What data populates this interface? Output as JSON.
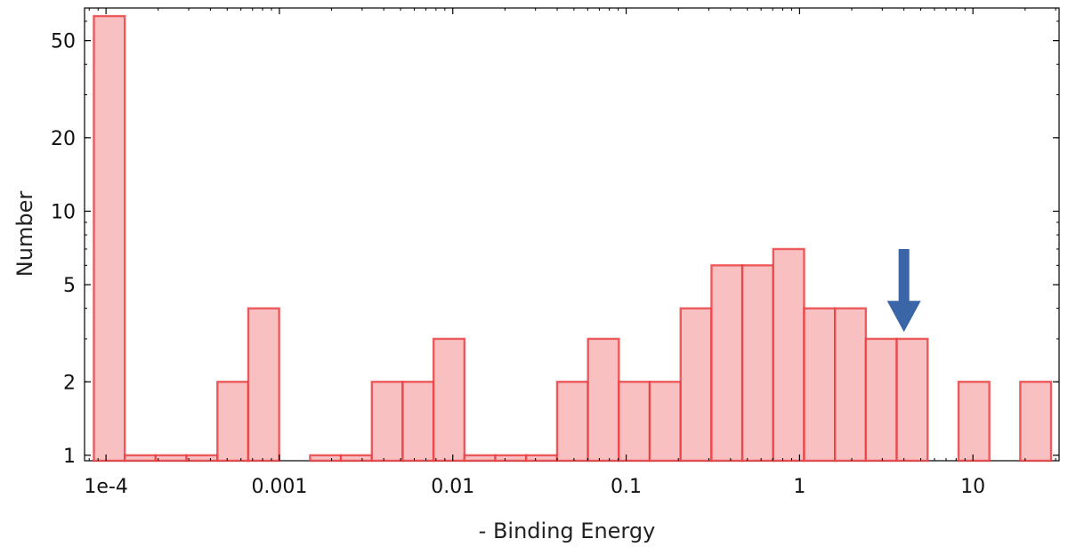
{
  "chart_data": {
    "type": "bar",
    "title": "",
    "xlabel": "- Binding Energy",
    "ylabel": "Number",
    "x_scale": "log",
    "y_scale": "log",
    "xlim": [
      7.52e-05,
      31.4
    ],
    "ylim": [
      0.95,
      68
    ],
    "x_ticks": [
      {
        "value": 0.0001,
        "label": "1e-4"
      },
      {
        "value": 0.001,
        "label": "0.001"
      },
      {
        "value": 0.01,
        "label": "0.01"
      },
      {
        "value": 0.1,
        "label": "0.1"
      },
      {
        "value": 1,
        "label": "1"
      },
      {
        "value": 10,
        "label": "10"
      }
    ],
    "y_ticks": [
      {
        "value": 1,
        "label": "1"
      },
      {
        "value": 2,
        "label": "2"
      },
      {
        "value": 5,
        "label": "5"
      },
      {
        "value": 10,
        "label": "10"
      },
      {
        "value": 20,
        "label": "20"
      },
      {
        "value": 50,
        "label": "50"
      }
    ],
    "bins": [
      {
        "x0": 8.51e-05,
        "x1": 0.0001283,
        "count": 63
      },
      {
        "x0": 0.0001283,
        "x1": 0.0001933,
        "count": 1
      },
      {
        "x0": 0.0001933,
        "x1": 0.0002914,
        "count": 1
      },
      {
        "x0": 0.0002914,
        "x1": 0.0004391,
        "count": 1
      },
      {
        "x0": 0.0004391,
        "x1": 0.0006617,
        "count": 2
      },
      {
        "x0": 0.0006617,
        "x1": 0.000997,
        "count": 4
      },
      {
        "x0": 0.001503,
        "x1": 0.002265,
        "count": 1
      },
      {
        "x0": 0.002265,
        "x1": 0.003413,
        "count": 1
      },
      {
        "x0": 0.003413,
        "x1": 0.005143,
        "count": 2
      },
      {
        "x0": 0.005143,
        "x1": 0.00775,
        "count": 2
      },
      {
        "x0": 0.00775,
        "x1": 0.01168,
        "count": 3
      },
      {
        "x0": 0.01168,
        "x1": 0.0176,
        "count": 1
      },
      {
        "x0": 0.0176,
        "x1": 0.02652,
        "count": 1
      },
      {
        "x0": 0.02652,
        "x1": 0.03996,
        "count": 1
      },
      {
        "x0": 0.03996,
        "x1": 0.06022,
        "count": 2
      },
      {
        "x0": 0.06022,
        "x1": 0.09075,
        "count": 3
      },
      {
        "x0": 0.09075,
        "x1": 0.1367,
        "count": 2
      },
      {
        "x0": 0.1367,
        "x1": 0.2061,
        "count": 2
      },
      {
        "x0": 0.2061,
        "x1": 0.3105,
        "count": 4
      },
      {
        "x0": 0.3105,
        "x1": 0.4679,
        "count": 6
      },
      {
        "x0": 0.4679,
        "x1": 0.7051,
        "count": 6
      },
      {
        "x0": 0.7051,
        "x1": 1.0625,
        "count": 7
      },
      {
        "x0": 1.0625,
        "x1": 1.601,
        "count": 4
      },
      {
        "x0": 1.601,
        "x1": 2.413,
        "count": 4
      },
      {
        "x0": 2.413,
        "x1": 3.635,
        "count": 3
      },
      {
        "x0": 3.635,
        "x1": 5.478,
        "count": 3
      },
      {
        "x0": 8.256,
        "x1": 12.44,
        "count": 2
      },
      {
        "x0": 18.74,
        "x1": 28.24,
        "count": 2
      }
    ],
    "annotation": {
      "type": "arrow",
      "direction": "down",
      "x": 4.0,
      "y_from": 7.0,
      "y_to": 3.2,
      "color": "#3a66a8"
    },
    "bar_fill": "#f9c0c2",
    "bar_stroke": "#e8393c",
    "grid": false,
    "legend": "none"
  }
}
